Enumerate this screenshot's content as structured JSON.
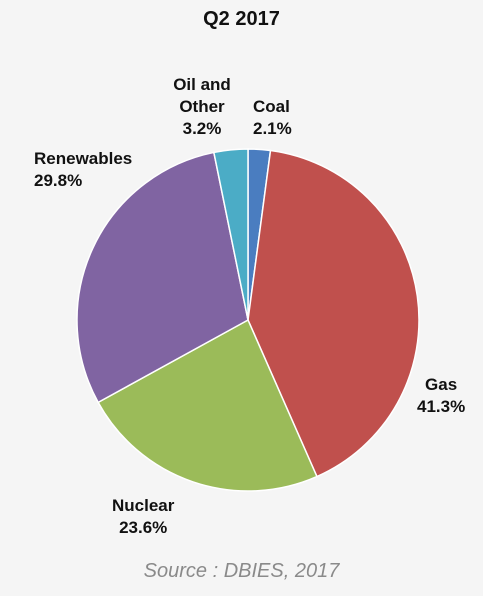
{
  "chart_data": {
    "type": "pie",
    "title": "Q2 2017",
    "slices": [
      {
        "label": "Coal",
        "value": 2.1,
        "value_label": "2.1%",
        "color": "#4a7dc0"
      },
      {
        "label": "Gas",
        "value": 41.3,
        "value_label": "41.3%",
        "color": "#c0504d"
      },
      {
        "label": "Nuclear",
        "value": 23.6,
        "value_label": "23.6%",
        "color": "#9bbb59"
      },
      {
        "label": "Renewables",
        "value": 29.8,
        "value_label": "29.8%",
        "color": "#8064a2"
      },
      {
        "label": "Oil and Other",
        "value": 3.2,
        "value_label": "3.2%",
        "color": "#4bacc6"
      }
    ],
    "start": "12 o'clock",
    "direction": "clockwise"
  },
  "source": "Source : DBIES, 2017"
}
